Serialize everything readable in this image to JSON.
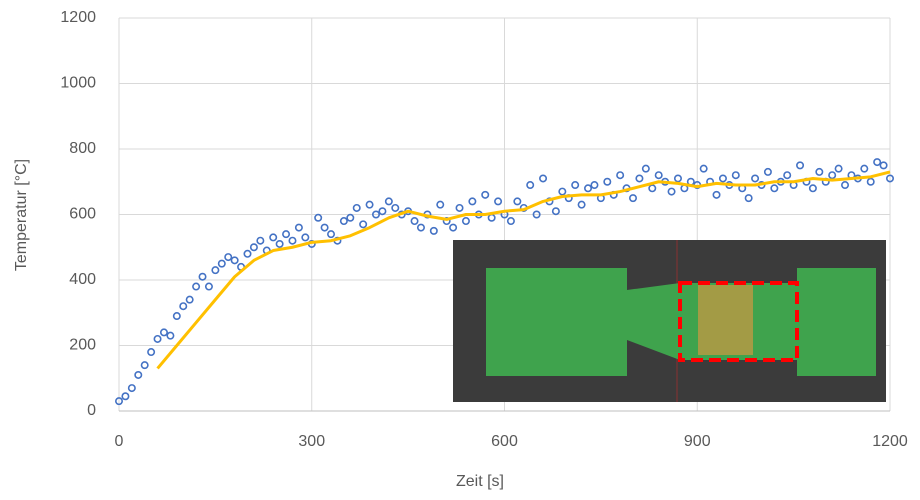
{
  "chart_data": {
    "type": "scatter",
    "x_label": "Zeit [s]",
    "y_label": "Temperatur [°C]",
    "xlim": [
      0,
      1200
    ],
    "xticks": [
      0,
      300,
      600,
      900,
      1200
    ],
    "ylim": [
      0,
      1200
    ],
    "yticks": [
      0,
      200,
      400,
      600,
      800,
      1000,
      1200
    ],
    "grid": true,
    "series": [
      {
        "type": "scatter",
        "color": "#4472c4",
        "x": [
          0,
          10,
          20,
          30,
          40,
          50,
          60,
          70,
          80,
          90,
          100,
          110,
          120,
          130,
          140,
          150,
          160,
          170,
          180,
          190,
          200,
          210,
          220,
          230,
          240,
          250,
          260,
          270,
          280,
          290,
          300,
          310,
          320,
          330,
          340,
          350,
          360,
          370,
          380,
          390,
          400,
          410,
          420,
          430,
          440,
          450,
          460,
          470,
          480,
          490,
          500,
          510,
          520,
          530,
          540,
          550,
          560,
          570,
          580,
          590,
          600,
          610,
          620,
          630,
          640,
          650,
          660,
          670,
          680,
          690,
          700,
          710,
          720,
          730,
          740,
          750,
          760,
          770,
          780,
          790,
          800,
          810,
          820,
          830,
          840,
          850,
          860,
          870,
          880,
          890,
          900,
          910,
          920,
          930,
          940,
          950,
          960,
          970,
          980,
          990,
          1000,
          1010,
          1020,
          1030,
          1040,
          1050,
          1060,
          1070,
          1080,
          1090,
          1100,
          1110,
          1120,
          1130,
          1140,
          1150,
          1160,
          1170,
          1180,
          1190,
          1200
        ],
        "values": [
          30,
          45,
          70,
          110,
          140,
          180,
          220,
          240,
          230,
          290,
          320,
          340,
          380,
          410,
          380,
          430,
          450,
          470,
          460,
          440,
          480,
          500,
          520,
          490,
          530,
          510,
          540,
          520,
          560,
          530,
          510,
          590,
          560,
          540,
          520,
          580,
          590,
          620,
          570,
          630,
          600,
          610,
          640,
          620,
          600,
          610,
          580,
          560,
          600,
          550,
          630,
          580,
          560,
          620,
          580,
          640,
          600,
          660,
          590,
          640,
          600,
          580,
          640,
          620,
          690,
          600,
          710,
          640,
          610,
          670,
          650,
          690,
          630,
          680,
          690,
          650,
          700,
          660,
          720,
          680,
          650,
          710,
          740,
          680,
          720,
          700,
          670,
          710,
          680,
          700,
          690,
          740,
          700,
          660,
          710,
          690,
          720,
          680,
          650,
          710,
          690,
          730,
          680,
          700,
          720,
          690,
          750,
          700,
          680,
          730,
          700,
          720,
          740,
          690,
          720,
          710,
          740,
          700,
          760,
          750,
          710
        ]
      },
      {
        "type": "line",
        "color": "#ffc000",
        "x": [
          60,
          90,
          120,
          150,
          180,
          210,
          240,
          270,
          300,
          330,
          360,
          390,
          420,
          450,
          480,
          510,
          540,
          570,
          600,
          630,
          660,
          690,
          720,
          750,
          780,
          810,
          840,
          870,
          900,
          930,
          960,
          990,
          1020,
          1050,
          1080,
          1110,
          1140,
          1170,
          1200
        ],
        "values": [
          130,
          200,
          270,
          340,
          410,
          460,
          490,
          500,
          515,
          520,
          535,
          560,
          590,
          610,
          595,
          585,
          600,
          600,
          610,
          615,
          640,
          655,
          660,
          660,
          670,
          685,
          700,
          695,
          685,
          695,
          690,
          690,
          700,
          700,
          710,
          705,
          710,
          715,
          730
        ]
      }
    ]
  }
}
